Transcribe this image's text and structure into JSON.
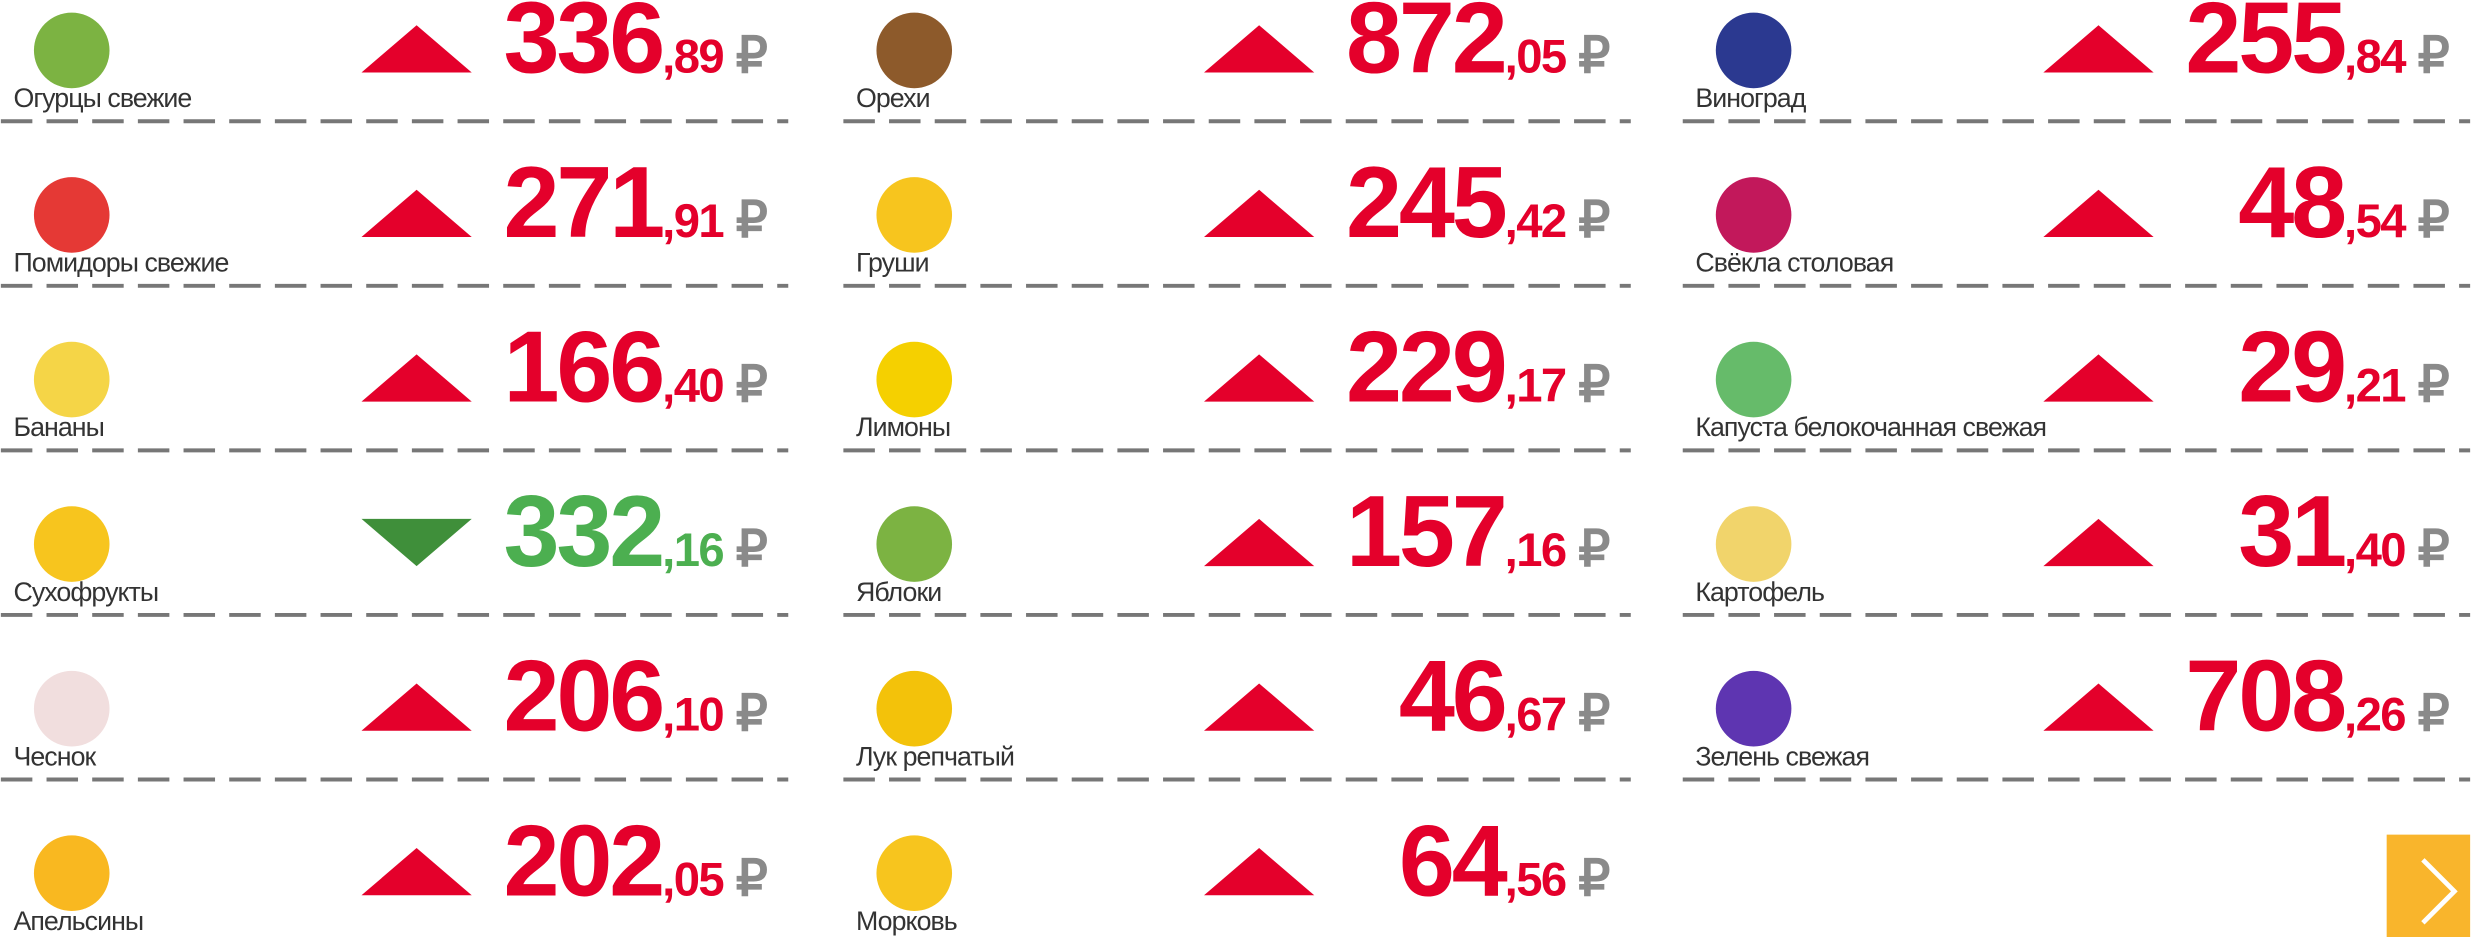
{
  "columns": [
    {
      "items": [
        {
          "name": "Огурцы свежие",
          "whole": "336",
          "fraction": ",89",
          "currency": "₽",
          "trend": "up"
        },
        {
          "name": "Помидоры свежие",
          "whole": "271",
          "fraction": ",91",
          "currency": "₽",
          "trend": "up"
        },
        {
          "name": "Бананы",
          "whole": "166",
          "fraction": ",40",
          "currency": "₽",
          "trend": "up"
        },
        {
          "name": "Сухофрукты",
          "whole": "332",
          "fraction": ",16",
          "currency": "₽",
          "trend": "down"
        },
        {
          "name": "Чеснок",
          "whole": "206",
          "fraction": ",10",
          "currency": "₽",
          "trend": "up"
        },
        {
          "name": "Апельсины",
          "whole": "202",
          "fraction": ",05",
          "currency": "₽",
          "trend": "up"
        }
      ]
    },
    {
      "items": [
        {
          "name": "Орехи",
          "whole": "872",
          "fraction": ",05",
          "currency": "₽",
          "trend": "up"
        },
        {
          "name": "Груши",
          "whole": "245",
          "fraction": ",42",
          "currency": "₽",
          "trend": "up"
        },
        {
          "name": "Лимоны",
          "whole": "229",
          "fraction": ",17",
          "currency": "₽",
          "trend": "up"
        },
        {
          "name": "Яблоки",
          "whole": "157",
          "fraction": ",16",
          "currency": "₽",
          "trend": "up"
        },
        {
          "name": "Лук репчатый",
          "whole": "46",
          "fraction": ",67",
          "currency": "₽",
          "trend": "up"
        },
        {
          "name": "Морковь",
          "whole": "64",
          "fraction": ",56",
          "currency": "₽",
          "trend": "up"
        }
      ]
    },
    {
      "items": [
        {
          "name": "Виноград",
          "whole": "255",
          "fraction": ",84",
          "currency": "₽",
          "trend": "up"
        },
        {
          "name": "Свёкла столовая",
          "whole": "48",
          "fraction": ",54",
          "currency": "₽",
          "trend": "up"
        },
        {
          "name": "Капуста белокочанная свежая",
          "whole": "29",
          "fraction": ",21",
          "currency": "₽",
          "trend": "up"
        },
        {
          "name": "Картофель",
          "whole": "31",
          "fraction": ",40",
          "currency": "₽",
          "trend": "up"
        },
        {
          "name": "Зелень свежая",
          "whole": "708",
          "fraction": ",26",
          "currency": "₽",
          "trend": "up"
        }
      ]
    }
  ]
}
